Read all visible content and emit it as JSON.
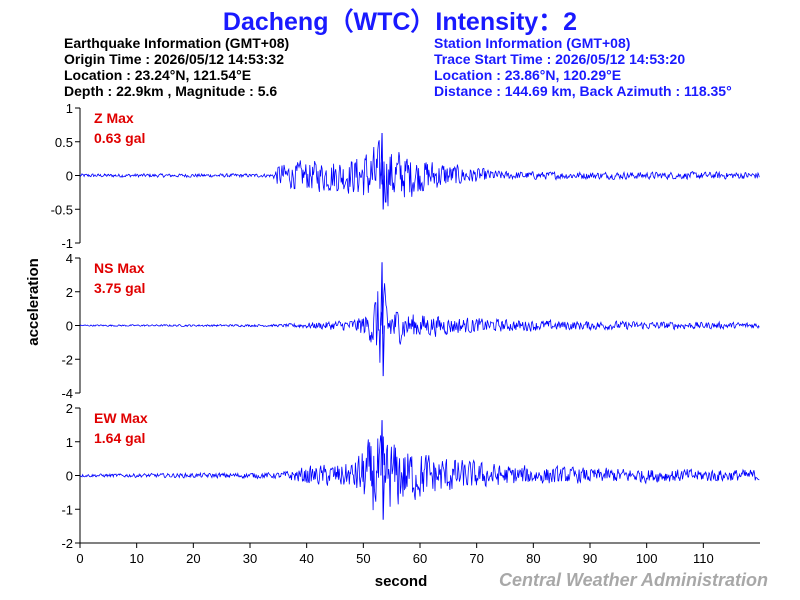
{
  "title": "Dacheng（WTC）Intensity：2",
  "earthquake_info": {
    "heading": "Earthquake Information  (GMT+08)",
    "origin_time": "Origin Time : 2026/05/12 14:53:32",
    "location": "Location : 23.24°N, 121.54°E",
    "depth_magnitude": "Depth : 22.9km , Magnitude : 5.6"
  },
  "station_info": {
    "heading": "Station Information  (GMT+08)",
    "trace_start": "Trace Start Time : 2026/05/12 14:53:20",
    "location": "Location : 23.86°N, 120.29°E",
    "distance": "Distance : 144.69 km, Back Azimuth : 118.35°"
  },
  "footer": "Central Weather Administration",
  "colors": {
    "trace": "#0000ff",
    "label": "#e00000",
    "title": "#1a1aff",
    "footer": "#a8a8a8"
  },
  "chart_data": {
    "type": "line",
    "xlabel": "second",
    "ylabel": "acceleration",
    "xlim": [
      0,
      120
    ],
    "xticks": [
      0,
      10,
      20,
      30,
      40,
      50,
      60,
      70,
      80,
      90,
      100,
      110
    ],
    "panels": [
      {
        "name": "Z",
        "label_line1": "Z Max",
        "label_line2": "0.63 gal",
        "peak": 0.63,
        "ylim": [
          -1,
          1
        ],
        "yticks": [
          1,
          0.5,
          0,
          -0.5,
          -1
        ],
        "envelope": [
          [
            0,
            0.03
          ],
          [
            34,
            0.03
          ],
          [
            35,
            0.2
          ],
          [
            40,
            0.25
          ],
          [
            48,
            0.3
          ],
          [
            53,
            0.55
          ],
          [
            56,
            0.45
          ],
          [
            60,
            0.3
          ],
          [
            68,
            0.15
          ],
          [
            75,
            0.07
          ],
          [
            90,
            0.06
          ],
          [
            120,
            0.06
          ]
        ]
      },
      {
        "name": "NS",
        "label_line1": "NS Max",
        "label_line2": "3.75 gal",
        "peak": 3.75,
        "ylim": [
          -4,
          4
        ],
        "yticks": [
          4,
          2,
          0,
          -2,
          -4
        ],
        "envelope": [
          [
            0,
            0.05
          ],
          [
            35,
            0.08
          ],
          [
            40,
            0.2
          ],
          [
            48,
            0.4
          ],
          [
            51,
            0.9
          ],
          [
            53,
            3.2
          ],
          [
            55,
            1.4
          ],
          [
            58,
            0.9
          ],
          [
            65,
            0.6
          ],
          [
            75,
            0.4
          ],
          [
            90,
            0.3
          ],
          [
            120,
            0.2
          ]
        ]
      },
      {
        "name": "EW",
        "label_line1": "EW Max",
        "label_line2": "1.64 gal",
        "peak": 1.64,
        "ylim": [
          -2,
          2
        ],
        "yticks": [
          2,
          1,
          0,
          -1,
          -2
        ],
        "envelope": [
          [
            0,
            0.05
          ],
          [
            35,
            0.1
          ],
          [
            40,
            0.3
          ],
          [
            48,
            0.45
          ],
          [
            52,
            1.4
          ],
          [
            55,
            1.2
          ],
          [
            60,
            0.8
          ],
          [
            68,
            0.5
          ],
          [
            75,
            0.35
          ],
          [
            90,
            0.25
          ],
          [
            120,
            0.2
          ]
        ]
      }
    ]
  }
}
